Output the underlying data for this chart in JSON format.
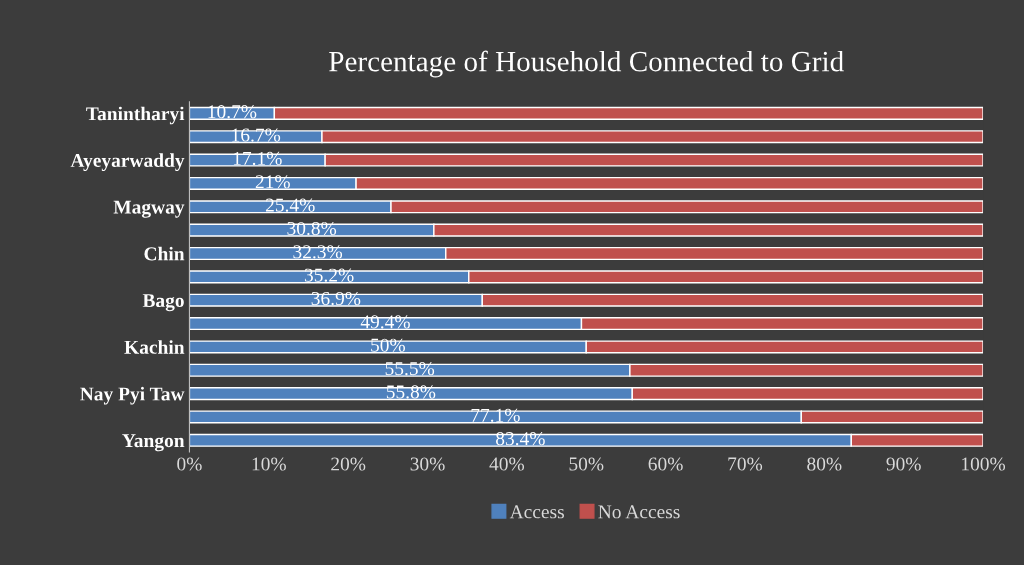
{
  "chart_data": {
    "type": "bar",
    "orientation": "horizontal",
    "stacked": true,
    "title": "Percentage of Household Connected to Grid",
    "categories": [
      "Tanintharyi",
      null,
      "Ayeyarwaddy",
      null,
      "Magway",
      null,
      "Chin",
      null,
      "Bago",
      null,
      "Kachin",
      null,
      "Nay Pyi Taw",
      null,
      "Yangon"
    ],
    "series": [
      {
        "name": "Access",
        "color": "#4f81bd",
        "values": [
          10.7,
          16.7,
          17.1,
          21,
          25.4,
          30.8,
          32.3,
          35.2,
          36.9,
          49.4,
          50,
          55.5,
          55.8,
          77.1,
          83.4
        ],
        "value_labels": [
          "10.7%",
          "16.7%",
          "17.1%",
          "21%",
          "25.4%",
          "30.8%",
          "32.3%",
          "35.2%",
          "36.9%",
          "49.4%",
          "50%",
          "55.5%",
          "55.8%",
          "77.1%",
          "83.4%"
        ]
      },
      {
        "name": "No Access",
        "color": "#c0504d",
        "values": [
          89.3,
          83.3,
          82.9,
          79,
          74.6,
          69.2,
          67.7,
          64.8,
          63.1,
          50.6,
          50,
          44.5,
          44.2,
          22.9,
          16.6
        ]
      }
    ],
    "xlim": [
      0,
      100
    ],
    "xticks": [
      {
        "value": 0,
        "label": "0%"
      },
      {
        "value": 10,
        "label": "10%"
      },
      {
        "value": 20,
        "label": "20%"
      },
      {
        "value": 30,
        "label": "30%"
      },
      {
        "value": 40,
        "label": "40%"
      },
      {
        "value": 50,
        "label": "50%"
      },
      {
        "value": 60,
        "label": "60%"
      },
      {
        "value": 70,
        "label": "70%"
      },
      {
        "value": 80,
        "label": "80%"
      },
      {
        "value": 90,
        "label": "90%"
      },
      {
        "value": 100,
        "label": "100%"
      }
    ],
    "grid": false,
    "legend": "bottom"
  }
}
